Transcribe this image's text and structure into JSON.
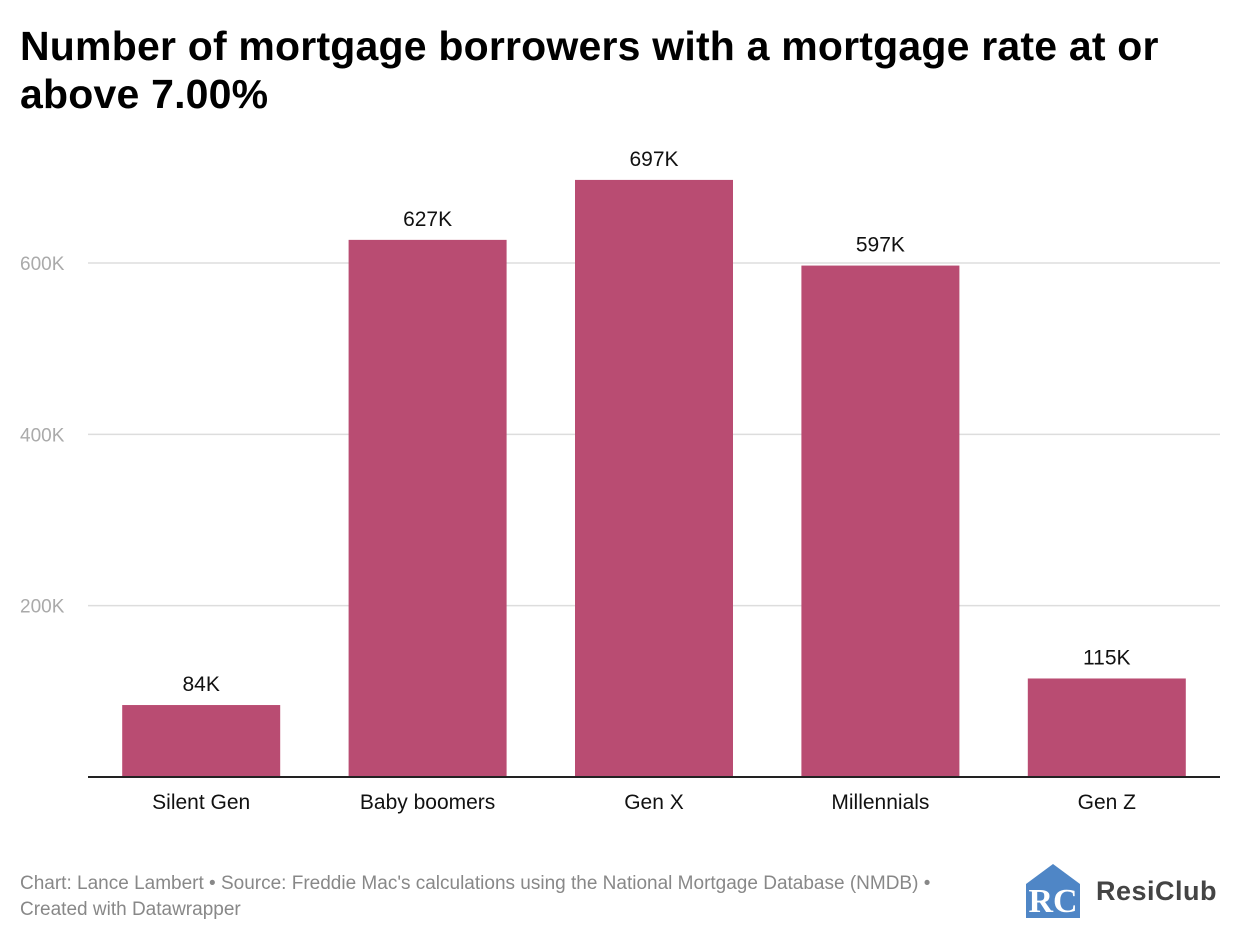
{
  "title": "Number of mortgage borrowers with a mortgage rate at or above 7.00%",
  "colors": {
    "bar": "#b94c72",
    "grid": "#dddddd",
    "axis": "#222222",
    "tick_text": "#aaaaaa",
    "footer_text": "#888888"
  },
  "chart_data": {
    "type": "bar",
    "categories": [
      "Silent Gen",
      "Baby boomers",
      "Gen X",
      "Millennials",
      "Gen Z"
    ],
    "values": [
      84000,
      627000,
      697000,
      597000,
      115000
    ],
    "data_labels": [
      "84K",
      "627K",
      "697K",
      "597K",
      "115K"
    ],
    "y_ticks": [
      200000,
      400000,
      600000
    ],
    "y_tick_labels": [
      "200K",
      "400K",
      "600K"
    ],
    "ylim": [
      0,
      740000
    ],
    "grid": true,
    "legend": "none"
  },
  "footer": {
    "text": "Chart: Lance Lambert • Source: Freddie Mac's calculations using the National Mortgage Database (NMDB) • Created with Datawrapper"
  },
  "logo": {
    "text": "ResiClub",
    "mark_letters": "RC",
    "mark_icon": "house-rc-logo-icon"
  }
}
